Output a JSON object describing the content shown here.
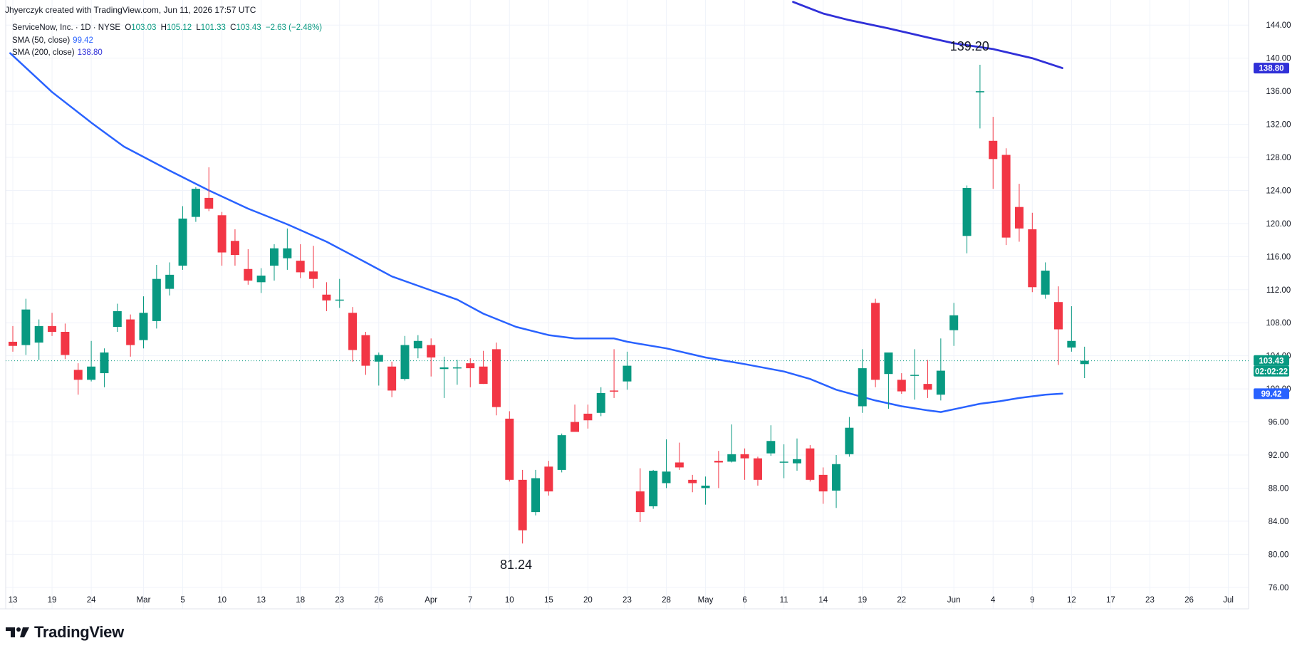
{
  "header": {
    "credit": "Jhyerczyk created with TradingView.com, Jun 11, 2026 17:57 UTC"
  },
  "legend": {
    "symbol": "ServiceNow, Inc. · 1D · NYSE",
    "ohlc": {
      "o_label": "O",
      "o": "103.03",
      "h_label": "H",
      "h": "105.12",
      "l_label": "L",
      "l": "101.33",
      "c_label": "C",
      "c": "103.43",
      "change": "−2.63 (−2.48%)"
    },
    "sma50": {
      "label": "SMA (50, close)",
      "value": "99.42"
    },
    "sma200": {
      "label": "SMA (200, close)",
      "value": "138.80"
    }
  },
  "colors": {
    "up": "#089981",
    "down": "#f23645",
    "sma50": "#2962ff",
    "sma200": "#3030d8",
    "grid": "#f0f3fa"
  },
  "logo": {
    "text": "TradingView",
    "icon": "tradingview-logo-icon"
  },
  "chart_data": {
    "type": "candlestick",
    "ylim": [
      74,
      146
    ],
    "y_ticks": [
      76,
      80,
      84,
      88,
      92,
      96,
      100,
      104,
      108,
      112,
      116,
      120,
      124,
      128,
      132,
      136,
      140,
      144
    ],
    "y_tick_labels": [
      "76.00",
      "80.00",
      "84.00",
      "88.00",
      "92.00",
      "96.00",
      "100.00",
      "104.00",
      "108.00",
      "112.00",
      "116.00",
      "120.00",
      "124.00",
      "128.00",
      "132.00",
      "136.00",
      "140.00",
      "144.00"
    ],
    "x_ticks": [
      {
        "i": 0,
        "label": "13"
      },
      {
        "i": 3,
        "label": "19"
      },
      {
        "i": 6,
        "label": "24"
      },
      {
        "i": 10,
        "label": "Mar"
      },
      {
        "i": 13,
        "label": "5"
      },
      {
        "i": 16,
        "label": "10"
      },
      {
        "i": 19,
        "label": "13"
      },
      {
        "i": 22,
        "label": "18"
      },
      {
        "i": 25,
        "label": "23"
      },
      {
        "i": 28,
        "label": "26"
      },
      {
        "i": 32,
        "label": "Apr"
      },
      {
        "i": 35,
        "label": "7"
      },
      {
        "i": 38,
        "label": "10"
      },
      {
        "i": 41,
        "label": "15"
      },
      {
        "i": 44,
        "label": "20"
      },
      {
        "i": 47,
        "label": "23"
      },
      {
        "i": 50,
        "label": "28"
      },
      {
        "i": 53,
        "label": "May"
      },
      {
        "i": 56,
        "label": "6"
      },
      {
        "i": 59,
        "label": "11"
      },
      {
        "i": 62,
        "label": "14"
      },
      {
        "i": 65,
        "label": "19"
      },
      {
        "i": 68,
        "label": "22"
      },
      {
        "i": 72,
        "label": "Jun"
      },
      {
        "i": 75,
        "label": "4"
      },
      {
        "i": 78,
        "label": "9"
      },
      {
        "i": 81,
        "label": "12"
      },
      {
        "i": 84,
        "label": "17"
      },
      {
        "i": 87,
        "label": "23"
      },
      {
        "i": 90,
        "label": "26"
      },
      {
        "i": 93,
        "label": "Jul"
      }
    ],
    "candles": [
      [
        105.7,
        107.6,
        104.5,
        105.2
      ],
      [
        105.3,
        110.9,
        104.1,
        109.6
      ],
      [
        105.6,
        108.4,
        103.5,
        107.6
      ],
      [
        107.6,
        109.2,
        106.4,
        106.9
      ],
      [
        106.9,
        107.9,
        103.6,
        104.1
      ],
      [
        102.3,
        103.1,
        99.3,
        101.1
      ],
      [
        101.1,
        105.8,
        100.9,
        102.7
      ],
      [
        101.9,
        104.9,
        100.2,
        104.4
      ],
      [
        107.5,
        110.3,
        106.9,
        109.4
      ],
      [
        108.4,
        109.0,
        103.9,
        105.3
      ],
      [
        105.9,
        111.2,
        104.9,
        109.2
      ],
      [
        108.2,
        115.0,
        107.3,
        113.3
      ],
      [
        112.1,
        115.3,
        111.3,
        113.8
      ],
      [
        114.9,
        122.1,
        114.4,
        120.6
      ],
      [
        120.8,
        124.4,
        120.2,
        124.2
      ],
      [
        123.1,
        126.8,
        121.5,
        121.8
      ],
      [
        121.0,
        121.4,
        114.9,
        116.5
      ],
      [
        117.9,
        119.3,
        114.9,
        116.2
      ],
      [
        114.5,
        116.9,
        112.6,
        113.1
      ],
      [
        112.9,
        114.6,
        111.6,
        113.7
      ],
      [
        114.9,
        117.5,
        113.1,
        117.0
      ],
      [
        115.8,
        119.4,
        114.4,
        117.0
      ],
      [
        115.5,
        117.5,
        113.4,
        114.1
      ],
      [
        114.2,
        117.3,
        112.2,
        113.3
      ],
      [
        111.4,
        112.9,
        109.4,
        110.7
      ],
      [
        110.7,
        113.3,
        109.8,
        110.8
      ],
      [
        109.2,
        109.9,
        103.3,
        104.7
      ],
      [
        106.5,
        106.9,
        101.7,
        102.8
      ],
      [
        103.3,
        104.4,
        100.4,
        104.1
      ],
      [
        102.7,
        103.3,
        99.0,
        99.8
      ],
      [
        101.2,
        106.4,
        101.0,
        105.3
      ],
      [
        104.9,
        106.5,
        103.7,
        105.8
      ],
      [
        105.3,
        106.1,
        101.5,
        103.8
      ],
      [
        102.4,
        103.9,
        98.9,
        102.6
      ],
      [
        102.5,
        103.5,
        100.5,
        102.6
      ],
      [
        103.1,
        103.7,
        100.2,
        102.5
      ],
      [
        102.7,
        104.6,
        100.6,
        100.6
      ],
      [
        104.8,
        105.6,
        96.8,
        97.8
      ],
      [
        96.4,
        97.3,
        88.8,
        89.0
      ],
      [
        89.0,
        90.2,
        81.3,
        82.9
      ],
      [
        85.1,
        90.2,
        84.7,
        89.2
      ],
      [
        90.6,
        91.3,
        87.1,
        87.6
      ],
      [
        90.2,
        94.6,
        89.9,
        94.4
      ],
      [
        96.0,
        98.1,
        95.2,
        94.8
      ],
      [
        97.0,
        98.1,
        95.2,
        96.2
      ],
      [
        97.1,
        100.2,
        96.7,
        99.5
      ],
      [
        99.8,
        104.8,
        98.9,
        99.7
      ],
      [
        100.9,
        104.5,
        99.9,
        102.8
      ],
      [
        87.6,
        90.4,
        83.9,
        85.1
      ],
      [
        85.8,
        90.2,
        85.5,
        90.1
      ],
      [
        88.6,
        93.9,
        88.0,
        90.0
      ],
      [
        91.1,
        93.5,
        90.2,
        90.5
      ],
      [
        89.0,
        89.6,
        87.5,
        88.6
      ],
      [
        88.0,
        89.4,
        86.0,
        88.3
      ],
      [
        91.3,
        92.5,
        88.0,
        91.1
      ],
      [
        91.2,
        95.7,
        91.1,
        92.1
      ],
      [
        92.1,
        92.8,
        89.0,
        91.6
      ],
      [
        91.6,
        91.8,
        88.3,
        89.0
      ],
      [
        92.2,
        95.6,
        91.9,
        93.7
      ],
      [
        91.2,
        93.3,
        89.2,
        91.2
      ],
      [
        91.0,
        94.0,
        90.1,
        91.5
      ],
      [
        92.8,
        93.2,
        88.8,
        89.0
      ],
      [
        89.6,
        90.5,
        86.1,
        87.6
      ],
      [
        87.7,
        92.0,
        85.6,
        90.9
      ],
      [
        92.1,
        96.6,
        91.8,
        95.3
      ],
      [
        97.9,
        104.8,
        97.1,
        102.5
      ],
      [
        110.4,
        110.9,
        100.2,
        101.1
      ],
      [
        101.8,
        104.1,
        97.6,
        104.4
      ],
      [
        101.1,
        101.9,
        99.4,
        99.7
      ],
      [
        101.7,
        104.8,
        98.7,
        101.7
      ],
      [
        100.6,
        103.5,
        98.9,
        99.9
      ],
      [
        99.3,
        106.1,
        98.6,
        102.2
      ],
      [
        107.1,
        110.4,
        105.2,
        108.9
      ],
      [
        118.5,
        124.6,
        116.4,
        124.3
      ],
      [
        135.9,
        139.2,
        131.5,
        136.0
      ],
      [
        130.0,
        132.9,
        124.2,
        127.8
      ],
      [
        128.3,
        129.1,
        117.4,
        118.3
      ],
      [
        122.0,
        124.8,
        117.8,
        119.4
      ],
      [
        119.3,
        121.3,
        111.7,
        112.3
      ],
      [
        111.4,
        115.3,
        110.9,
        114.3
      ],
      [
        110.5,
        112.4,
        102.9,
        107.2
      ],
      [
        105.0,
        110.0,
        104.5,
        105.8
      ],
      [
        103.0,
        105.1,
        101.3,
        103.4
      ]
    ],
    "sma50": {
      "name": "SMA (50, close)",
      "last": 99.42,
      "points": [
        [
          -0.2,
          140.6
        ],
        [
          3,
          135.9
        ],
        [
          6,
          132.2
        ],
        [
          8.5,
          129.3
        ],
        [
          12,
          126.4
        ],
        [
          15,
          124.0
        ],
        [
          18,
          121.8
        ],
        [
          21,
          119.9
        ],
        [
          24,
          117.8
        ],
        [
          27,
          115.3
        ],
        [
          29,
          113.6
        ],
        [
          31.5,
          112.2
        ],
        [
          34,
          110.8
        ],
        [
          36,
          109.1
        ],
        [
          38.5,
          107.5
        ],
        [
          41,
          106.5
        ],
        [
          43,
          106.1
        ],
        [
          46,
          106.1
        ],
        [
          47,
          105.7
        ],
        [
          50,
          104.9
        ],
        [
          53,
          103.8
        ],
        [
          56,
          103.0
        ],
        [
          59,
          102.1
        ],
        [
          61,
          101.2
        ],
        [
          63,
          99.9
        ],
        [
          66,
          98.6
        ],
        [
          68,
          97.9
        ],
        [
          70,
          97.4
        ],
        [
          71,
          97.2
        ],
        [
          72.5,
          97.7
        ],
        [
          74,
          98.2
        ],
        [
          75.5,
          98.5
        ],
        [
          77,
          98.9
        ],
        [
          79,
          99.3
        ],
        [
          80.3,
          99.42
        ]
      ]
    },
    "sma200": {
      "name": "SMA (200, close)",
      "last": 138.8,
      "points": [
        [
          59.7,
          146.8
        ],
        [
          62,
          145.4
        ],
        [
          64,
          144.6
        ],
        [
          67,
          143.6
        ],
        [
          70,
          142.5
        ],
        [
          72,
          141.8
        ],
        [
          75,
          141.1
        ],
        [
          78,
          140.0
        ],
        [
          80.3,
          138.8
        ]
      ]
    },
    "annotations": [
      {
        "label": "139.20",
        "i": 73.2,
        "y": 139.2
      },
      {
        "label": "81.24",
        "i": 38.5,
        "y": 81.24
      }
    ],
    "price_tags": [
      {
        "label": "138.80",
        "y": 138.8,
        "color": "#3030d8"
      },
      {
        "label": "103.43",
        "y": 103.43,
        "color": "#089981"
      },
      {
        "label": "02:02:22",
        "y": 103.43,
        "color": "#089981",
        "sub": true
      },
      {
        "label": "99.42",
        "y": 99.42,
        "color": "#2962ff"
      }
    ]
  }
}
